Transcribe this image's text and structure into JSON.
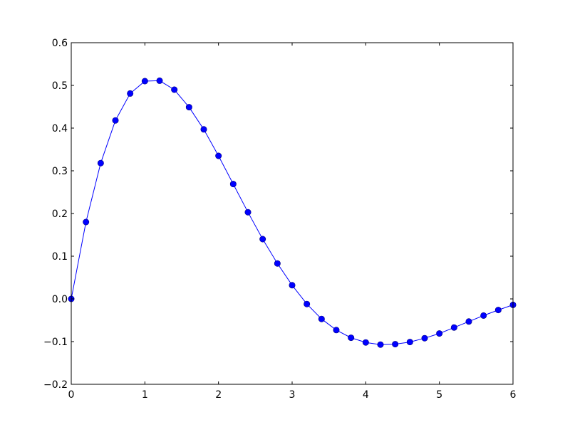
{
  "chart_data": {
    "type": "line",
    "title": "",
    "xlabel": "",
    "ylabel": "",
    "xlim": [
      0,
      6
    ],
    "ylim": [
      -0.2,
      0.6
    ],
    "grid": false,
    "x_ticks": [
      "0",
      "1",
      "2",
      "3",
      "4",
      "5",
      "6"
    ],
    "y_ticks": [
      "−0.2",
      "−0.1",
      "0.0",
      "0.1",
      "0.2",
      "0.3",
      "0.4",
      "0.5",
      "0.6"
    ],
    "series": [
      {
        "color": "#0000ff",
        "marker": "circle",
        "x": [
          0,
          0.2,
          0.4,
          0.6,
          0.8,
          1.0,
          1.2,
          1.4,
          1.6,
          1.8,
          2.0,
          2.2,
          2.4,
          2.6,
          2.8,
          3.0,
          3.2,
          3.4,
          3.6,
          3.8,
          4.0,
          4.2,
          4.4,
          4.6,
          4.8,
          5.0,
          5.2,
          5.4,
          5.6,
          5.8,
          6.0
        ],
        "y": [
          0.0,
          0.18,
          0.318,
          0.418,
          0.481,
          0.51,
          0.511,
          0.49,
          0.449,
          0.397,
          0.335,
          0.269,
          0.203,
          0.14,
          0.083,
          0.032,
          -0.012,
          -0.047,
          -0.073,
          -0.091,
          -0.102,
          -0.107,
          -0.106,
          -0.101,
          -0.092,
          -0.081,
          -0.067,
          -0.053,
          -0.039,
          -0.026,
          -0.014
        ]
      }
    ]
  }
}
